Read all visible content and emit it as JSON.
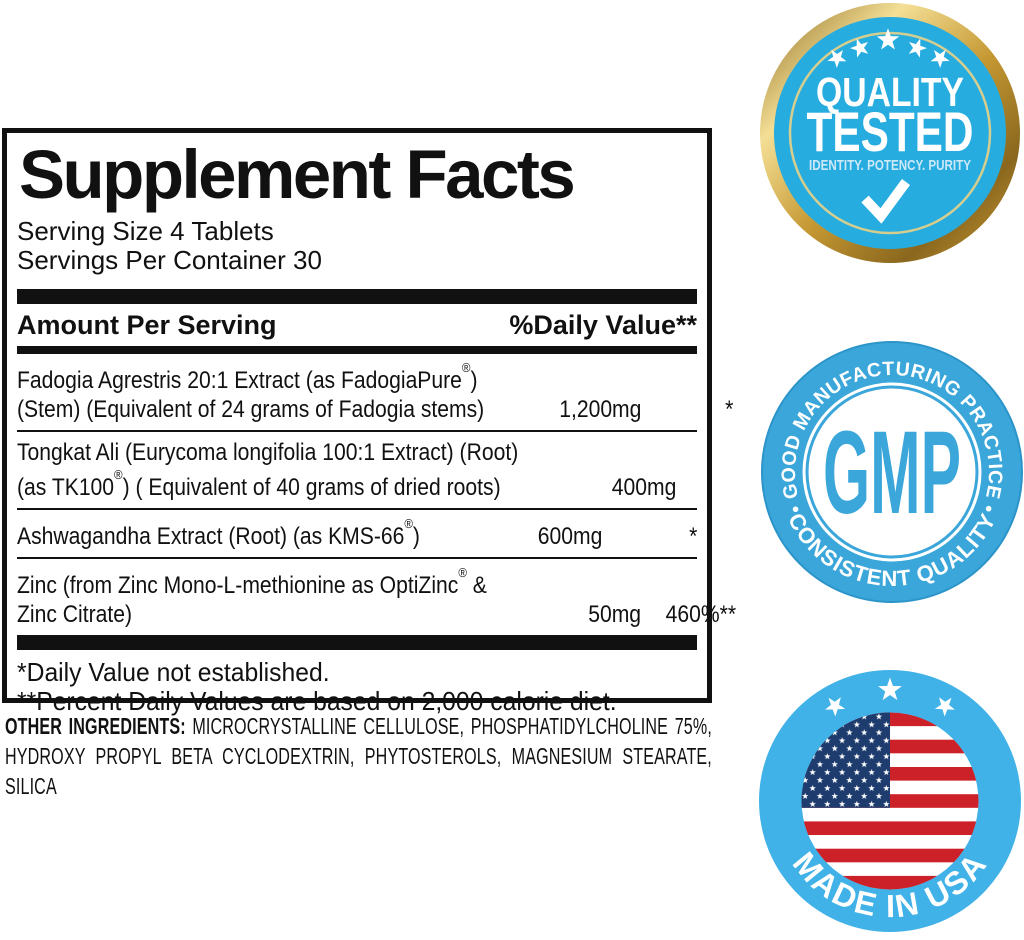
{
  "panel": {
    "title": "Supplement Facts",
    "serving_size": "Serving Size 4 Tablets",
    "servings_per_container": "Servings Per Container 30",
    "col_amount": "Amount Per Serving",
    "col_dv": "%Daily Value**",
    "rows": [
      {
        "line1": "Fadogia Agrestris 20:1 Extract (as FadogiaPure®)",
        "line2": "(Stem) (Equivalent of 24 grams of Fadogia stems)",
        "amount": "1,200mg",
        "dv": "*"
      },
      {
        "line1": "Tongkat Ali (Eurycoma longifolia 100:1 Extract) (Root)",
        "line2": "(as TK100®) ( Equivalent of 40 grams of dried roots)",
        "amount": "400mg",
        "dv": "*"
      },
      {
        "line1": "Ashwagandha Extract (Root) (as KMS-66®)",
        "line2": null,
        "amount": "600mg",
        "dv": "*"
      },
      {
        "line1": "Zinc (from Zinc Mono-L-methionine as OptiZinc® &",
        "line2": "Zinc Citrate)",
        "amount": "50mg",
        "dv": "460%**"
      }
    ],
    "footnote1": "*Daily Value not established.",
    "footnote2": "**Percent Daily Values are based on 2,000 calorie diet."
  },
  "other_ingredients": {
    "label": "OTHER INGREDIENTS:",
    "text": "MICROCRYSTALLINE CELLULOSE, PHOSPHATIDYLCHOLINE 75%, HYDROXY PROPYL BETA CYCLODEXTRIN, PHYTOSTEROLS, MAGNESIUM STEARATE, SILICA"
  },
  "badges": {
    "quality_tested": {
      "line1": "QUALITY",
      "line2": "TESTED",
      "subtitle": "IDENTITY. POTENCY. PURITY",
      "check_icon": "checkmark-icon",
      "stars_icon": "five-stars-arc"
    },
    "gmp": {
      "top_arc": "• GOOD MANUFACTURING PRACTICE •",
      "bottom_arc": "CONSISTENT QUALITY",
      "center": "GMP"
    },
    "made_in_usa": {
      "arc": "MADE IN USA",
      "flag_icon": "usa-flag-circle",
      "stars_icon": "three-stars-arc"
    }
  },
  "colors": {
    "ink": "#111111",
    "qt-blue": "#27ACE0",
    "qt-ring": "#D6CE8E",
    "gold-light": "#F4DF96",
    "gold-mid": "#C59832",
    "gold-dark": "#8A671E",
    "gmp-blue": "#3BA6D9",
    "gmp-rim": "#2B94C9",
    "usa-blue": "#41B2E8",
    "flag-red": "#CC2128",
    "flag-navy": "#1E3D6E"
  }
}
